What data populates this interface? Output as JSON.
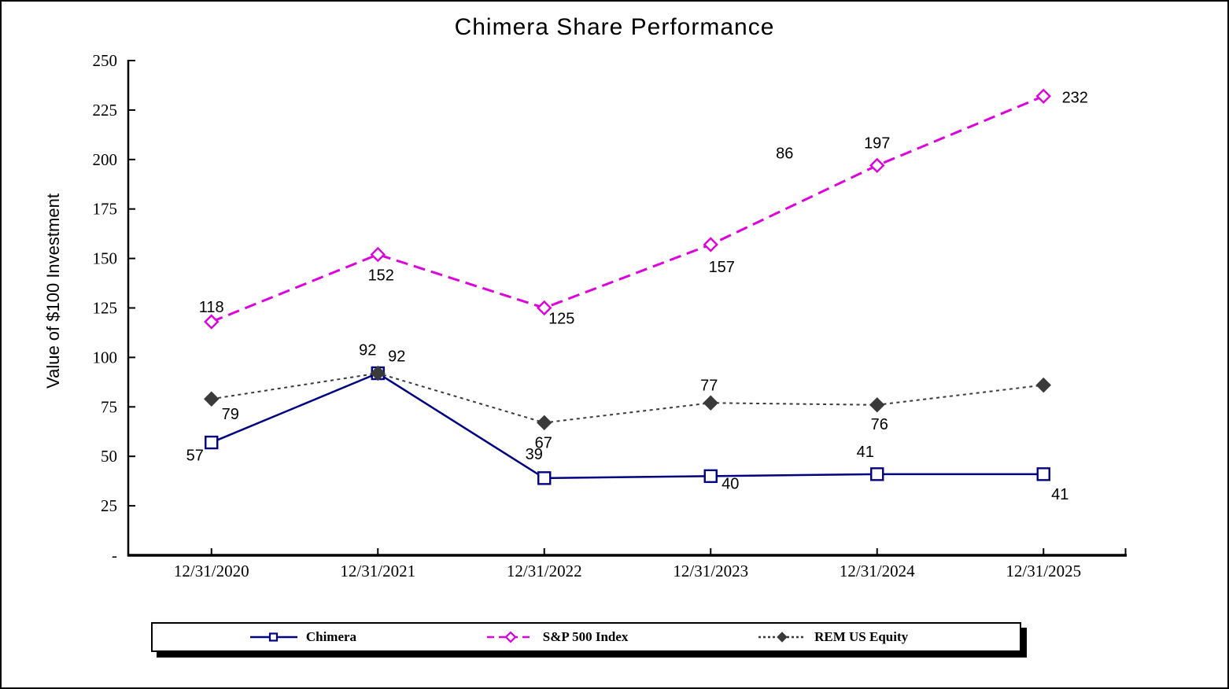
{
  "chart_data": {
    "type": "line",
    "title": "Chimera Share Performance",
    "ylabel": "Value of $100 Investment",
    "xlabel": "",
    "ylim": [
      0,
      250
    ],
    "grid": false,
    "axis_color": "#000000",
    "y_ticks": [
      {
        "value": 250,
        "label": "250"
      },
      {
        "value": 225,
        "label": "225"
      },
      {
        "value": 200,
        "label": "200"
      },
      {
        "value": 175,
        "label": "175"
      },
      {
        "value": 150,
        "label": "150"
      },
      {
        "value": 125,
        "label": "125"
      },
      {
        "value": 100,
        "label": "100"
      },
      {
        "value": 75,
        "label": "75"
      },
      {
        "value": 50,
        "label": "50"
      },
      {
        "value": 25,
        "label": "25"
      },
      {
        "value": 0,
        "label": "-"
      }
    ],
    "categories": [
      "12/31/2020",
      "12/31/2021",
      "12/31/2022",
      "12/31/2023",
      "12/31/2024",
      "12/31/2025"
    ],
    "series": [
      {
        "name": "Chimera",
        "color": "#000080",
        "line_style": "solid",
        "marker": "open-square",
        "values": [
          57,
          92,
          39,
          40,
          41,
          41
        ],
        "label_offsets": [
          [
            -21,
            16
          ],
          [
            -13,
            -30
          ],
          [
            -13,
            -31
          ],
          [
            25,
            9
          ],
          [
            -15,
            -29
          ],
          [
            21,
            25
          ]
        ]
      },
      {
        "name": "S&P 500 Index",
        "color": "#DD00DD",
        "line_style": "dashed",
        "marker": "open-diamond",
        "values": [
          118,
          152,
          125,
          157,
          197,
          232
        ],
        "label_offsets": [
          [
            0,
            -19
          ],
          [
            4,
            26
          ],
          [
            22,
            13
          ],
          [
            14,
            28
          ],
          [
            0,
            -29
          ],
          [
            40,
            1
          ]
        ]
      },
      {
        "name": "REM US Equity",
        "color": "#3A3A3A",
        "line_style": "dotted",
        "marker": "filled-diamond",
        "values": [
          79,
          92,
          67,
          77,
          76,
          86
        ],
        "label_offsets": [
          [
            24,
            19
          ],
          [
            24,
            -22
          ],
          [
            -1,
            25
          ],
          [
            -2,
            -23
          ],
          [
            3,
            24
          ],
          [
            -329,
            -295
          ]
        ]
      }
    ],
    "legend": {
      "position": "bottom"
    }
  }
}
